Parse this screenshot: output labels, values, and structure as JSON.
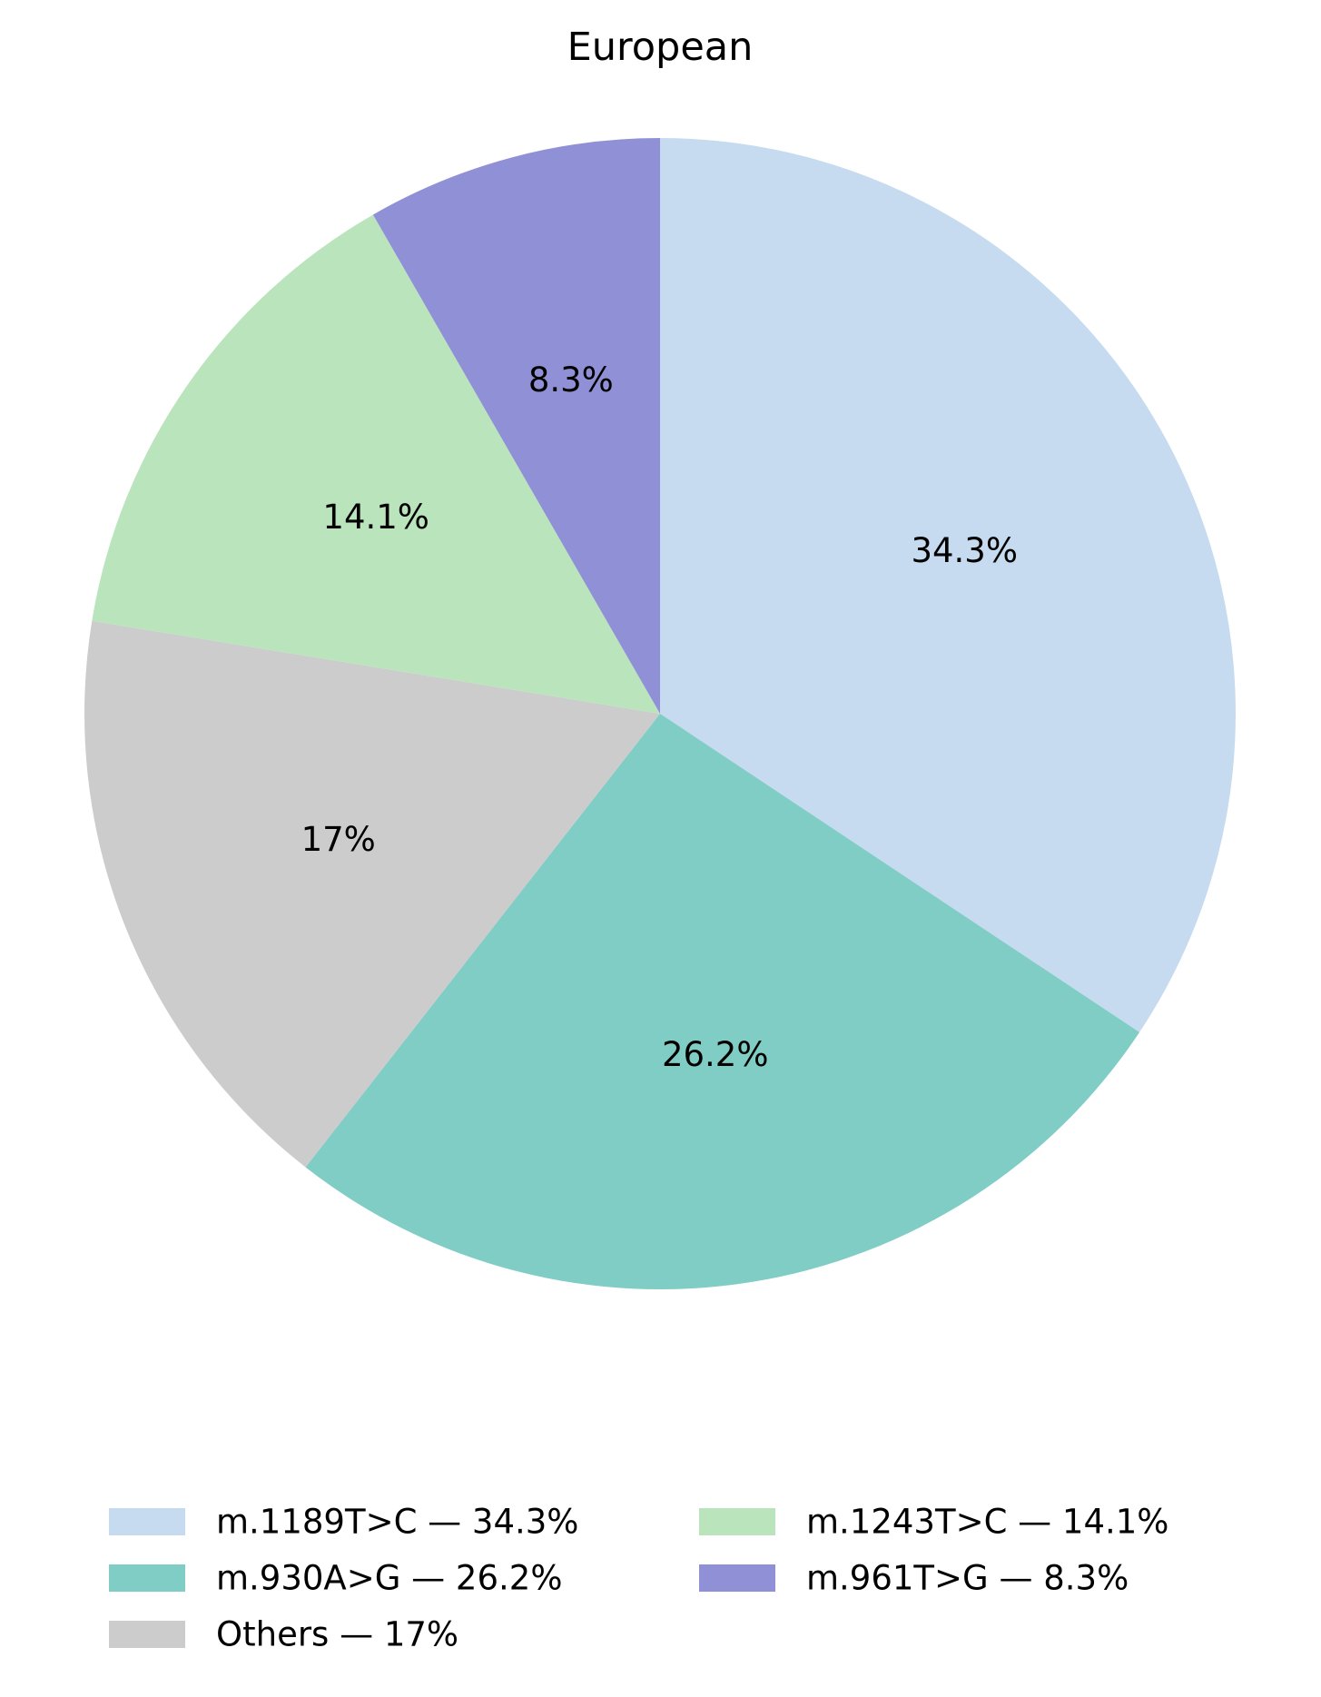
{
  "chart_data": {
    "type": "pie",
    "title": "European",
    "slices": [
      {
        "label": "m.1189T>C",
        "value": 34.3,
        "display": "34.3%",
        "legend": "m.1189T>C — 34.3%",
        "color": "#c6dbef"
      },
      {
        "label": "m.930A>G",
        "value": 26.2,
        "display": "26.2%",
        "legend": "m.930A>G — 26.2%",
        "color": "#7fcdc4"
      },
      {
        "label": "Others",
        "value": 17,
        "display": "17%",
        "legend": "Others — 17%",
        "color": "#cccccc"
      },
      {
        "label": "m.1243T>C",
        "value": 14.1,
        "display": "14.1%",
        "legend": "m.1243T>C — 14.1%",
        "color": "#bae4bc"
      },
      {
        "label": "m.961T>G",
        "value": 8.3,
        "display": "8.3%",
        "legend": "m.961T>G — 8.3%",
        "color": "#9090d6"
      }
    ],
    "start_angle": "top",
    "direction": "clockwise",
    "legend_placement": "bottom"
  }
}
